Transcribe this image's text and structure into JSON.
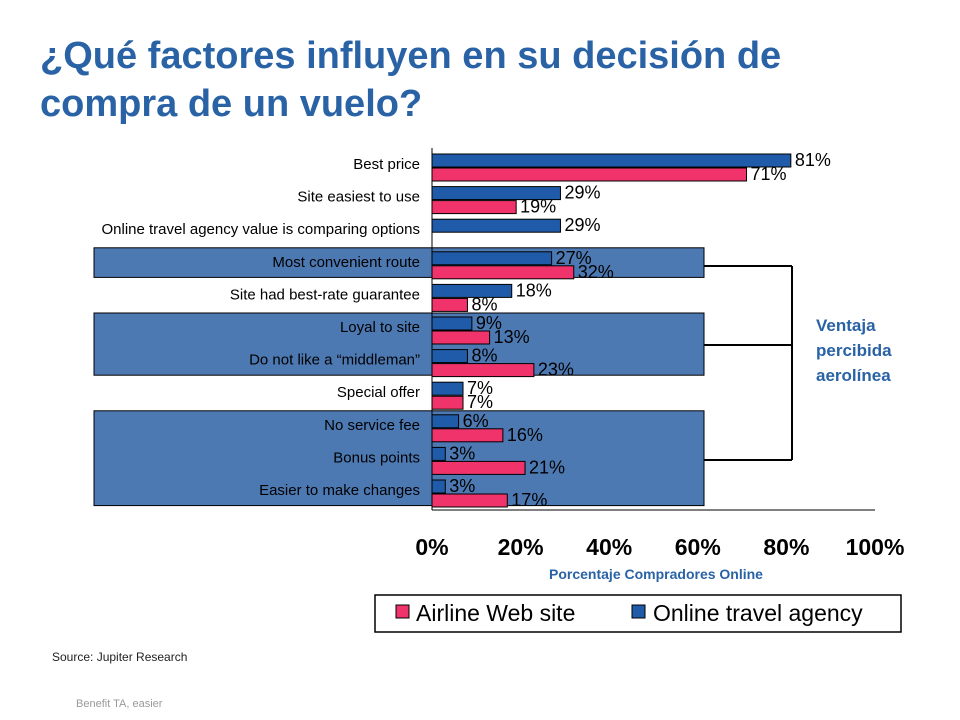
{
  "title": "¿Qué factores influyen en su decisión de compra de un vuelo?",
  "source": "Source: Jupiter Research",
  "footer": "Benefit TA, easier",
  "annotation": {
    "lines": [
      "Ventaja",
      "percibida",
      "aerolínea"
    ]
  },
  "colors": {
    "title": "#2a62a6",
    "ota": "#1f5ba8",
    "airline": "#f0336b",
    "box": "#4d79b3"
  },
  "chart_data": {
    "type": "bar",
    "orientation": "horizontal",
    "categories": [
      "Best price",
      "Site easiest to use",
      "Online travel agency value is comparing options",
      "Most convenient route",
      "Site had best-rate guarantee",
      "Loyal to site",
      "Do not like a “middleman”",
      "Special offer",
      "No service fee",
      "Bonus points",
      "Easier to make changes"
    ],
    "series": [
      {
        "name": "Online travel agency",
        "color": "#1f5ba8",
        "values": [
          81,
          29,
          29,
          27,
          18,
          9,
          8,
          7,
          6,
          3,
          3
        ],
        "labels": [
          "81%",
          "29%",
          "29%",
          "27%",
          "18%",
          "9%",
          "8%",
          "7%",
          "6%",
          "3%",
          "3%"
        ]
      },
      {
        "name": "Airline Web site",
        "color": "#f0336b",
        "values": [
          71,
          19,
          null,
          32,
          8,
          13,
          23,
          7,
          16,
          21,
          17
        ],
        "labels": [
          "71%",
          "19%",
          "",
          "32%",
          "8%",
          "13%",
          "23%",
          "7%",
          "16%",
          "21%",
          "17%"
        ]
      }
    ],
    "xlabel": "Porcentaje Compradores Online",
    "xlim": [
      0,
      100
    ],
    "xticks": [
      "0%",
      "20%",
      "40%",
      "60%",
      "80%",
      "100%"
    ],
    "legend": [
      "Airline Web site",
      "Online travel agency"
    ],
    "highlight_groups": [
      [
        3,
        3
      ],
      [
        5,
        6
      ],
      [
        8,
        10
      ]
    ]
  }
}
